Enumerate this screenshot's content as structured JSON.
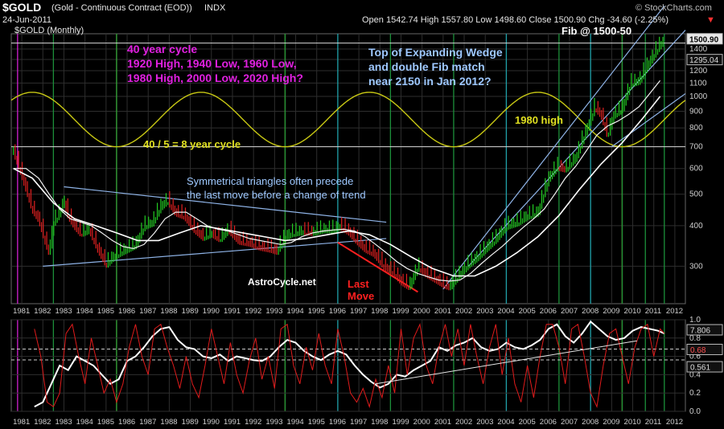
{
  "header": {
    "symbol": "$GOLD",
    "name": "(Gold - Continuous Contract (EOD))",
    "exchange": "INDX",
    "watermark": "© StockCharts.com",
    "date": "24-Jun-2011",
    "ohlc": "Open 1542.74  High 1557.80  Low 1498.60  Close 1500.90  Chg -34.60 (-2.25%)",
    "down_marker": "▼"
  },
  "chart_data": [
    {
      "type": "line",
      "title": "$GOLD (Monthly)",
      "yscale": "log",
      "ylim": [
        230,
        1560
      ],
      "xlim": [
        1980.5,
        2012.5
      ],
      "grid": true,
      "y_ticks": [
        300,
        400,
        500,
        600,
        700,
        800,
        900,
        1000,
        1100,
        1200,
        1300,
        1400
      ],
      "x_ticks": [
        "1981",
        "1982",
        "1983",
        "1984",
        "1985",
        "1986",
        "1987",
        "1988",
        "1989",
        "1990",
        "1991",
        "1992",
        "1993",
        "1994",
        "1995",
        "1996",
        "1997",
        "1998",
        "1999",
        "2000",
        "2001",
        "2002",
        "2003",
        "2004",
        "2005",
        "2006",
        "2007",
        "2008",
        "2009",
        "2010",
        "2011",
        "2012"
      ],
      "price_labels": [
        {
          "value": 1500.9,
          "text": "1500.90"
        },
        {
          "value": 1295.04,
          "text": "1295.04"
        }
      ],
      "series": [
        {
          "x": [
            1980.6,
            1980.9,
            1981.2,
            1981.5,
            1981.8,
            1982.1,
            1982.3,
            1982.5,
            1982.8,
            1983.0,
            1983.2,
            1983.5,
            1983.8,
            1984.2,
            1984.6,
            1985.0,
            1985.3,
            1985.6,
            1986.0,
            1986.4,
            1986.8,
            1987.2,
            1987.6,
            1987.9,
            1988.3,
            1988.7,
            1989.2,
            1989.6,
            1990.0,
            1990.4,
            1990.8,
            1991.3,
            1991.8,
            1992.3,
            1992.8,
            1993.1,
            1993.5,
            1993.8,
            1994.3,
            1994.8,
            1995.3,
            1995.8,
            1996.1,
            1996.5,
            1996.9,
            1997.3,
            1997.7,
            1998.2,
            1998.6,
            1999.0,
            1999.4,
            1999.6,
            1999.8,
            2000.2,
            2000.6,
            2001.0,
            2001.3,
            2001.7,
            2002.2,
            2002.6,
            2003.0,
            2003.5,
            2004.0,
            2004.5,
            2005.0,
            2005.5,
            2006.0,
            2006.4,
            2006.8,
            2007.3,
            2007.8,
            2008.2,
            2008.5,
            2008.8,
            2009.1,
            2009.5,
            2009.9,
            2010.3,
            2010.7,
            2011.0,
            2011.3,
            2011.5
          ],
          "values": [
            680,
            600,
            520,
            450,
            420,
            360,
            330,
            410,
            440,
            480,
            430,
            400,
            380,
            390,
            340,
            305,
            320,
            330,
            340,
            350,
            400,
            410,
            460,
            480,
            440,
            430,
            390,
            370,
            380,
            365,
            390,
            360,
            355,
            345,
            340,
            335,
            370,
            380,
            385,
            383,
            390,
            390,
            400,
            385,
            360,
            340,
            330,
            300,
            290,
            270,
            260,
            280,
            300,
            285,
            275,
            265,
            260,
            280,
            305,
            320,
            340,
            365,
            400,
            410,
            430,
            440,
            560,
            610,
            600,
            650,
            790,
            930,
            880,
            760,
            880,
            920,
            1100,
            1120,
            1250,
            1350,
            1450,
            1500
          ]
        },
        {
          "x": [
            1980.6,
            1981.2,
            1981.8,
            1982.3,
            1982.8,
            1983.3,
            1983.8,
            1984.3,
            1984.8,
            1985.3,
            1985.8,
            1986.3,
            1986.8,
            1987.3,
            1987.8,
            1988.3,
            1988.8,
            1989.3,
            1989.8,
            1990.3,
            1990.8,
            1991.3,
            1991.8,
            1992.3,
            1992.8,
            1993.3,
            1993.8,
            1994.3,
            1994.8,
            1995.3,
            1995.8,
            1996.3,
            1996.8,
            1997.3,
            1997.8,
            1998.3,
            1998.8,
            1999.3,
            1999.8,
            2000.3,
            2000.8,
            2001.3,
            2001.8,
            2002.3,
            2002.8,
            2003.3,
            2003.8,
            2004.3,
            2004.8,
            2005.3,
            2005.8,
            2006.3,
            2006.8,
            2007.3,
            2007.8,
            2008.3,
            2008.8,
            2009.3,
            2009.8,
            2010.3,
            2010.8,
            2011.3
          ],
          "values": [
            600,
            600,
            560,
            500,
            450,
            420,
            410,
            400,
            380,
            360,
            345,
            340,
            350,
            380,
            420,
            440,
            440,
            420,
            400,
            390,
            385,
            375,
            365,
            360,
            355,
            350,
            355,
            370,
            380,
            385,
            388,
            390,
            385,
            370,
            350,
            330,
            310,
            295,
            285,
            278,
            272,
            270,
            272,
            285,
            305,
            325,
            345,
            370,
            395,
            420,
            450,
            500,
            560,
            610,
            680,
            760,
            810,
            840,
            880,
            930,
            1020,
            1120
          ]
        },
        {
          "x": [
            1980.6,
            1981.5,
            1982.5,
            1983.5,
            1984.5,
            1985.5,
            1986.5,
            1987.5,
            1988.5,
            1989.5,
            1990.5,
            1991.5,
            1992.5,
            1993.5,
            1994.5,
            1995.5,
            1996.5,
            1997.5,
            1998.5,
            1999.5,
            2000.5,
            2001.5,
            2002.5,
            2003.5,
            2004.5,
            2005.5,
            2006.5,
            2007.5,
            2008.5,
            2009.5,
            2010.5,
            2011.3
          ],
          "values": [
            600,
            560,
            470,
            420,
            400,
            380,
            360,
            360,
            380,
            400,
            390,
            380,
            370,
            360,
            365,
            375,
            385,
            375,
            350,
            320,
            295,
            280,
            280,
            300,
            330,
            370,
            430,
            520,
            620,
            720,
            860,
            1000
          ]
        }
      ],
      "annotations": [
        {
          "type": "cycle_sine",
          "label": "40 / 5 = 8 year cycle",
          "period_years": 8,
          "peak_years": [
            1981.5,
            1989.5,
            1997.5,
            2005.5
          ],
          "trough_years": [
            1985.5,
            1993.5,
            2001.5,
            2009.5
          ],
          "price_band": [
            700,
            1030
          ]
        },
        {
          "type": "horizontal_line",
          "value": 700
        },
        {
          "type": "horizontal_line",
          "value": 1460
        },
        {
          "type": "trendline",
          "from": [
            1983.0,
            527
          ],
          "to": [
            1998.3,
            410
          ]
        },
        {
          "type": "trendline",
          "from": [
            1982.0,
            300
          ],
          "to": [
            1998.3,
            365
          ]
        },
        {
          "type": "trendline",
          "from": [
            1996.0,
            355
          ],
          "to": [
            1999.8,
            250
          ]
        },
        {
          "type": "trendline",
          "from": [
            2001.0,
            255
          ],
          "to": [
            2011.5,
            1900
          ]
        },
        {
          "type": "trendline",
          "from": [
            2002.2,
            300
          ],
          "to": [
            2012.5,
            1600
          ]
        },
        {
          "type": "trendline",
          "from": [
            2009.0,
            700
          ],
          "to": [
            2012.5,
            1020
          ]
        }
      ],
      "vertical_lines": {
        "magenta": [
          1980.8
        ],
        "yellow": [
          1985.5,
          1993.5,
          2009.5
        ],
        "green": [
          1982.5,
          1985.5,
          1993.5,
          1998.5,
          2001.5,
          2006.5,
          2009.5,
          2010.6,
          2011.5
        ],
        "cyan": [
          1996.0,
          2004.0,
          2008.0
        ]
      }
    },
    {
      "type": "line",
      "ylim": [
        0.0,
        1.0
      ],
      "y_ticks": [
        0.0,
        0.2,
        0.4,
        0.6,
        0.8,
        1.0
      ],
      "dashed_lines": [
        0.561,
        0.68
      ],
      "value_labels": [
        {
          "value": 7.806,
          "text": "7.806"
        },
        {
          "value": 0.68,
          "text": "0.68"
        },
        {
          "value": 0.561,
          "text": "0.561"
        }
      ],
      "series": [
        {
          "color": "#ffffff",
          "x": [
            1981.6,
            1982.0,
            1982.4,
            1982.8,
            1983.2,
            1983.6,
            1984.0,
            1984.4,
            1984.8,
            1985.2,
            1985.6,
            1986.0,
            1986.4,
            1986.8,
            1987.2,
            1987.6,
            1988.0,
            1988.4,
            1988.8,
            1989.2,
            1989.6,
            1990.0,
            1990.4,
            1990.8,
            1991.2,
            1991.6,
            1992.0,
            1992.4,
            1992.8,
            1993.2,
            1993.6,
            1994.0,
            1994.4,
            1994.8,
            1995.2,
            1995.6,
            1996.0,
            1996.4,
            1996.8,
            1997.2,
            1997.6,
            1998.0,
            1998.4,
            1998.8,
            1999.2,
            1999.6,
            2000.0,
            2000.4,
            2000.8,
            2001.2,
            2001.6,
            2002.0,
            2002.4,
            2002.8,
            2003.2,
            2003.6,
            2004.0,
            2004.4,
            2004.8,
            2005.2,
            2005.6,
            2006.0,
            2006.4,
            2006.8,
            2007.2,
            2007.6,
            2008.0,
            2008.4,
            2008.8,
            2009.2,
            2009.6,
            2010.0,
            2010.4,
            2010.8,
            2011.2,
            2011.5
          ],
          "values": [
            0.05,
            0.1,
            0.3,
            0.5,
            0.45,
            0.6,
            0.55,
            0.5,
            0.4,
            0.3,
            0.35,
            0.55,
            0.6,
            0.7,
            0.82,
            0.9,
            0.92,
            0.78,
            0.7,
            0.68,
            0.6,
            0.58,
            0.62,
            0.55,
            0.6,
            0.58,
            0.56,
            0.55,
            0.6,
            0.7,
            0.78,
            0.75,
            0.66,
            0.6,
            0.56,
            0.62,
            0.66,
            0.62,
            0.5,
            0.4,
            0.32,
            0.26,
            0.3,
            0.4,
            0.38,
            0.45,
            0.5,
            0.55,
            0.7,
            0.66,
            0.72,
            0.75,
            0.8,
            0.7,
            0.66,
            0.68,
            0.75,
            0.7,
            0.68,
            0.72,
            0.78,
            0.9,
            0.95,
            0.82,
            0.75,
            0.85,
            0.98,
            0.9,
            0.82,
            0.78,
            0.8,
            0.88,
            0.92,
            0.9,
            0.88,
            0.85
          ]
        },
        {
          "color": "#e01b1b",
          "x": [
            1981.6,
            1981.9,
            1982.2,
            1982.5,
            1982.8,
            1983.1,
            1983.4,
            1983.7,
            1984.0,
            1984.3,
            1984.6,
            1984.9,
            1985.2,
            1985.5,
            1985.8,
            1986.1,
            1986.4,
            1986.7,
            1987.0,
            1987.3,
            1987.6,
            1987.9,
            1988.2,
            1988.5,
            1988.8,
            1989.1,
            1989.4,
            1989.7,
            1990.0,
            1990.3,
            1990.6,
            1990.9,
            1991.2,
            1991.5,
            1991.8,
            1992.1,
            1992.4,
            1992.7,
            1993.0,
            1993.3,
            1993.6,
            1993.9,
            1994.2,
            1994.5,
            1994.8,
            1995.1,
            1995.4,
            1995.7,
            1996.0,
            1996.3,
            1996.6,
            1996.9,
            1997.2,
            1997.5,
            1997.8,
            1998.1,
            1998.4,
            1998.7,
            1999.0,
            1999.3,
            1999.6,
            1999.9,
            2000.2,
            2000.5,
            2000.8,
            2001.1,
            2001.4,
            2001.7,
            2002.0,
            2002.3,
            2002.6,
            2002.9,
            2003.2,
            2003.5,
            2003.8,
            2004.1,
            2004.4,
            2004.7,
            2005.0,
            2005.3,
            2005.6,
            2005.9,
            2006.2,
            2006.5,
            2006.8,
            2007.1,
            2007.4,
            2007.7,
            2008.0,
            2008.3,
            2008.6,
            2008.9,
            2009.2,
            2009.5,
            2009.8,
            2010.1,
            2010.4,
            2010.7,
            2011.0,
            2011.3,
            2011.5
          ],
          "values": [
            0.9,
            0.6,
            0.1,
            0.05,
            0.2,
            0.85,
            0.95,
            0.6,
            0.3,
            0.8,
            0.5,
            0.2,
            0.35,
            0.1,
            0.3,
            0.7,
            0.95,
            0.6,
            0.4,
            0.9,
            0.95,
            0.7,
            0.5,
            0.25,
            0.6,
            0.3,
            0.15,
            0.5,
            0.9,
            0.6,
            0.3,
            0.75,
            0.4,
            0.2,
            0.55,
            0.8,
            0.35,
            0.6,
            0.25,
            0.9,
            0.95,
            0.5,
            0.3,
            0.7,
            0.45,
            0.85,
            0.5,
            0.3,
            0.9,
            0.6,
            0.2,
            0.1,
            0.25,
            0.05,
            0.35,
            0.15,
            0.5,
            0.2,
            0.9,
            0.4,
            0.8,
            0.95,
            0.5,
            0.3,
            0.7,
            0.95,
            0.6,
            0.9,
            0.5,
            0.95,
            0.6,
            0.3,
            0.7,
            0.95,
            0.4,
            0.8,
            0.3,
            0.1,
            0.5,
            0.15,
            0.6,
            0.95,
            0.95,
            0.7,
            0.3,
            0.9,
            0.95,
            0.6,
            0.2,
            0.05,
            0.5,
            0.85,
            0.9,
            0.6,
            0.3,
            0.7,
            0.9,
            0.95,
            0.6,
            0.9,
            0.85
          ]
        }
      ],
      "trendline": {
        "from": [
          1997.8,
          0.3
        ],
        "to": [
          2010.2,
          0.77
        ]
      },
      "x_ticks": [
        "1981",
        "1982",
        "1983",
        "1984",
        "1985",
        "1986",
        "1987",
        "1988",
        "1989",
        "1990",
        "1991",
        "1992",
        "1993",
        "1994",
        "1995",
        "1996",
        "1997",
        "1998",
        "1999",
        "2000",
        "2001",
        "2002",
        "2003",
        "2004",
        "2005",
        "2006",
        "2007",
        "2008",
        "2009",
        "2010",
        "2011",
        "2012"
      ]
    }
  ],
  "text_annotations": {
    "cycle40": [
      "40 year cycle",
      "1920 High, 1940 Low, 1960 Low,",
      "1980 High, 2000 Low, 2020 High?"
    ],
    "wedge": [
      "Top of Expanding Wedge",
      "and double Fib match",
      "near 2150 in Jan 2012?"
    ],
    "fib": "Fib @ 1500-50",
    "high1980": "1980 high",
    "cycle8": "40 / 5 = 8 year cycle",
    "triangles": [
      "Symmetrical triangles often precede",
      "the last move before a change of trend"
    ],
    "site": "AstroCycle.net",
    "lastmove": [
      "Last",
      "Move"
    ]
  },
  "colors": {
    "up": "#22cc22",
    "down": "#e02020",
    "grid": "#2e2e2e",
    "yellow": "#c8c814",
    "magenta": "#d020d0",
    "blue_text": "#9ec8ff",
    "fib": "#ffffff",
    "red_text": "#ff2020",
    "trend": "#8fb4e8"
  }
}
